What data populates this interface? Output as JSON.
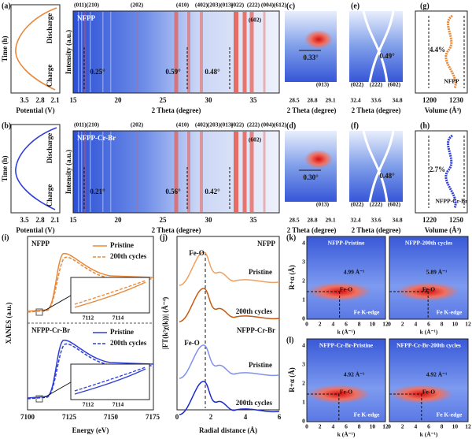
{
  "a": {
    "label": "(a)",
    "time_label": "Time (h)",
    "potential_label": "Potential (V)",
    "potential_ticks": [
      "3.5",
      "2.8",
      "2.1"
    ],
    "discharge": "Discharge",
    "charge": "Charge"
  },
  "a_map": {
    "sample": "NFPP",
    "intensity_label": "Intensity (a.u.)",
    "x_label": "2 Theta (degree)",
    "x_ticks": [
      "15",
      "20",
      "25",
      "30",
      "35"
    ],
    "reflections": [
      "(011)(210)",
      "(202)",
      "(410)",
      "(402)",
      "(203)(013)",
      "(022)",
      "(222)",
      "(004)",
      "(612)"
    ],
    "peak": "(602)",
    "shifts": [
      "0.25°",
      "0.59°",
      "0.48°"
    ]
  },
  "b": {
    "label": "(b)",
    "time_label": "Time (h)",
    "potential_label": "Potential (V)",
    "potential_ticks": [
      "3.5",
      "2.8",
      "2.1"
    ],
    "discharge": "Discharge",
    "charge": "Charge"
  },
  "b_map": {
    "sample": "NFPP-Cr-Br",
    "intensity_label": "Intensity (a.u.)",
    "x_label": "2 Theta (degree)",
    "x_ticks": [
      "15",
      "20",
      "25",
      "30",
      "35"
    ],
    "reflections": [
      "(011)(210)",
      "(202)",
      "(410)",
      "(402)",
      "(203)(013)",
      "(022)",
      "(222)",
      "(004)",
      "(612)"
    ],
    "peak": "(602)",
    "shifts": [
      "0.21°",
      "0.56°",
      "0.42°"
    ]
  },
  "c": {
    "label": "(c)",
    "shift": "0.33°",
    "reflections": [
      "(013)"
    ],
    "x_ticks": [
      "28.5",
      "28.8",
      "29.1"
    ],
    "x_label": "2 Theta (degree)"
  },
  "d": {
    "label": "(d)",
    "shift": "0.30°",
    "reflections": [
      "(013)"
    ],
    "x_ticks": [
      "28.5",
      "28.8",
      "29.1"
    ],
    "x_label": "2 Theta (degree)"
  },
  "e": {
    "label": "(e)",
    "shift": "0.49°",
    "reflections": [
      "(022)",
      "(222)",
      "(602)"
    ],
    "x_ticks": [
      "32.4",
      "33.6",
      "34.8"
    ],
    "x_label": "2 Theta (degree)"
  },
  "f": {
    "label": "(f)",
    "shift": "0.48°",
    "reflections": [
      "(022)",
      "(222)",
      "(602)"
    ],
    "x_ticks": [
      "32.4",
      "33.6",
      "34.8"
    ],
    "x_label": "2 Theta (degree)"
  },
  "g": {
    "label": "(g)",
    "change": "4.4%",
    "sample": "NFPP",
    "x_ticks": [
      "1200",
      "1230"
    ],
    "x_label": "Volume (Å³)"
  },
  "h": {
    "label": "(h)",
    "change": "2.7%",
    "sample": "NFPP-Cr-Br",
    "x_ticks": [
      "1220",
      "1250"
    ],
    "x_label": "Volume (Å³)"
  },
  "i": {
    "label": "(i)",
    "samples": [
      "NFPP",
      "NFPP-Cr-Br"
    ],
    "legend": [
      "Pristine",
      "200th cycles"
    ],
    "inset_ticks": [
      "7112",
      "7114"
    ],
    "y_label": "XANES (a.u.)",
    "x_label": "Energy (eV)",
    "x_ticks": [
      "7100",
      "7125",
      "7150",
      "7175"
    ]
  },
  "j": {
    "label": "(j)",
    "samples": [
      "NFPP",
      "NFPP-Cr-Br"
    ],
    "bond": "Fe-O",
    "curves": [
      "Pristine",
      "200th cycles"
    ],
    "y_label": "|FT(k³χ(k))| (Å⁻⁴)",
    "x_label": "Radial distance (Å)",
    "x_ticks": [
      "0",
      "2",
      "4",
      "6"
    ]
  },
  "k": {
    "label": "(k)",
    "titles": [
      "NFPP-Pristine",
      "NFPP-200th cycles"
    ],
    "peaks": [
      "4.99 Å⁻¹",
      "5.89 Å⁻¹"
    ],
    "bond": "Fe-O",
    "edge": "Fe K-edge",
    "y_label": "R+α (Å)",
    "y_ticks": [
      "0",
      "1",
      "2",
      "3",
      "4"
    ],
    "x_label": "k (Å⁻¹)",
    "x_ticks": [
      "0",
      "2",
      "4",
      "6",
      "8",
      "10",
      "12"
    ]
  },
  "l": {
    "label": "(l)",
    "titles": [
      "NFPP-Cr-Br-Pristine",
      "NFPP-Cr-Br-200th cycles"
    ],
    "peaks": [
      "4.92 Å⁻¹",
      "4.92 Å⁻¹"
    ],
    "bond": "Fe-O",
    "edge": "Fe K-edge",
    "y_label": "R+α (Å)",
    "y_ticks": [
      "0",
      "1",
      "2",
      "3",
      "4"
    ],
    "x_label": "k (Å⁻¹)",
    "x_ticks": [
      "0",
      "2",
      "4",
      "6",
      "8",
      "10",
      "12"
    ]
  }
}
